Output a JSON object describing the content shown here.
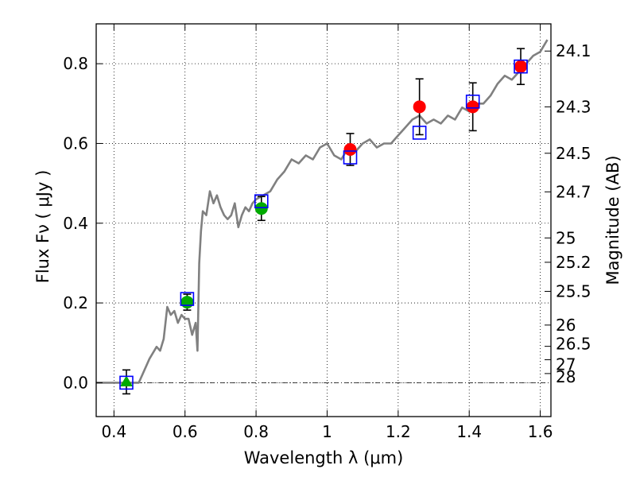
{
  "chart_data": {
    "type": "scatter",
    "title": "",
    "xlabel": "Wavelength  λ (μm)",
    "ylabel": "Flux  Fν  ( μJy )",
    "y2label": "Magnitude (AB)",
    "xlim": [
      0.35,
      1.63
    ],
    "ylim": [
      -0.085,
      0.9
    ],
    "grid": true,
    "x_ticks": [
      0.4,
      0.6,
      0.8,
      1.0,
      1.2,
      1.4,
      1.6
    ],
    "x_tick_labels": [
      "0.4",
      "0.6",
      "0.8",
      "1",
      "1.2",
      "1.4",
      "1.6"
    ],
    "y_ticks": [
      0.0,
      0.2,
      0.4,
      0.6,
      0.8
    ],
    "y_tick_labels": [
      "0.0",
      "0.2",
      "0.4",
      "0.6",
      "0.8"
    ],
    "mag_ticks": [
      24.1,
      24.3,
      24.5,
      24.7,
      25,
      25.2,
      25.5,
      26,
      26.5,
      27,
      28
    ],
    "mag_tick_labels": [
      "24.1",
      "24.3",
      "24.5",
      "24.7",
      "25",
      "25.2",
      "25.5",
      "26",
      "26.5",
      "27",
      "28"
    ],
    "zero_line_y": 0.0,
    "model_spectrum": {
      "color": "#808080",
      "x": [
        0.35,
        0.47,
        0.5,
        0.52,
        0.53,
        0.54,
        0.55,
        0.56,
        0.57,
        0.58,
        0.59,
        0.6,
        0.61,
        0.62,
        0.63,
        0.635,
        0.64,
        0.645,
        0.65,
        0.66,
        0.67,
        0.68,
        0.69,
        0.7,
        0.71,
        0.72,
        0.73,
        0.74,
        0.75,
        0.76,
        0.77,
        0.78,
        0.79,
        0.8,
        0.82,
        0.84,
        0.86,
        0.88,
        0.9,
        0.92,
        0.94,
        0.96,
        0.98,
        1.0,
        1.02,
        1.04,
        1.06,
        1.08,
        1.1,
        1.12,
        1.14,
        1.16,
        1.18,
        1.2,
        1.22,
        1.24,
        1.26,
        1.28,
        1.3,
        1.32,
        1.34,
        1.36,
        1.38,
        1.4,
        1.42,
        1.44,
        1.46,
        1.48,
        1.5,
        1.52,
        1.54,
        1.56,
        1.58,
        1.6,
        1.62
      ],
      "y": [
        0.0,
        0.0,
        0.06,
        0.09,
        0.08,
        0.11,
        0.19,
        0.17,
        0.18,
        0.15,
        0.17,
        0.16,
        0.16,
        0.12,
        0.15,
        0.08,
        0.3,
        0.38,
        0.43,
        0.42,
        0.48,
        0.45,
        0.47,
        0.44,
        0.42,
        0.41,
        0.42,
        0.45,
        0.39,
        0.42,
        0.44,
        0.43,
        0.45,
        0.46,
        0.47,
        0.48,
        0.51,
        0.53,
        0.56,
        0.55,
        0.57,
        0.56,
        0.59,
        0.6,
        0.57,
        0.56,
        0.59,
        0.58,
        0.6,
        0.61,
        0.59,
        0.6,
        0.6,
        0.62,
        0.64,
        0.66,
        0.67,
        0.65,
        0.66,
        0.65,
        0.67,
        0.66,
        0.69,
        0.68,
        0.7,
        0.7,
        0.72,
        0.75,
        0.77,
        0.76,
        0.78,
        0.8,
        0.82,
        0.83,
        0.86
      ]
    },
    "series": [
      {
        "marker": "triangle",
        "color": "#00aa00",
        "x": [
          0.435
        ],
        "y": [
          0.002
        ],
        "yerr": [
          0.03
        ]
      },
      {
        "marker": "circle",
        "color": "#00aa00",
        "x": [
          0.606,
          0.815
        ],
        "y": [
          0.202,
          0.437
        ],
        "yerr": [
          0.02,
          0.03
        ]
      },
      {
        "marker": "circle",
        "color": "#ff0000",
        "x": [
          1.065,
          1.26,
          1.41,
          1.545
        ],
        "y": [
          0.585,
          0.692,
          0.692,
          0.793
        ],
        "yerr": [
          0.04,
          0.07,
          0.06,
          0.045
        ]
      },
      {
        "marker": "open-square",
        "color": "#0000ff",
        "x": [
          0.435,
          0.606,
          0.815,
          1.065,
          1.26,
          1.41,
          1.545
        ],
        "y": [
          0.0,
          0.21,
          0.455,
          0.565,
          0.627,
          0.705,
          0.793
        ]
      }
    ]
  }
}
